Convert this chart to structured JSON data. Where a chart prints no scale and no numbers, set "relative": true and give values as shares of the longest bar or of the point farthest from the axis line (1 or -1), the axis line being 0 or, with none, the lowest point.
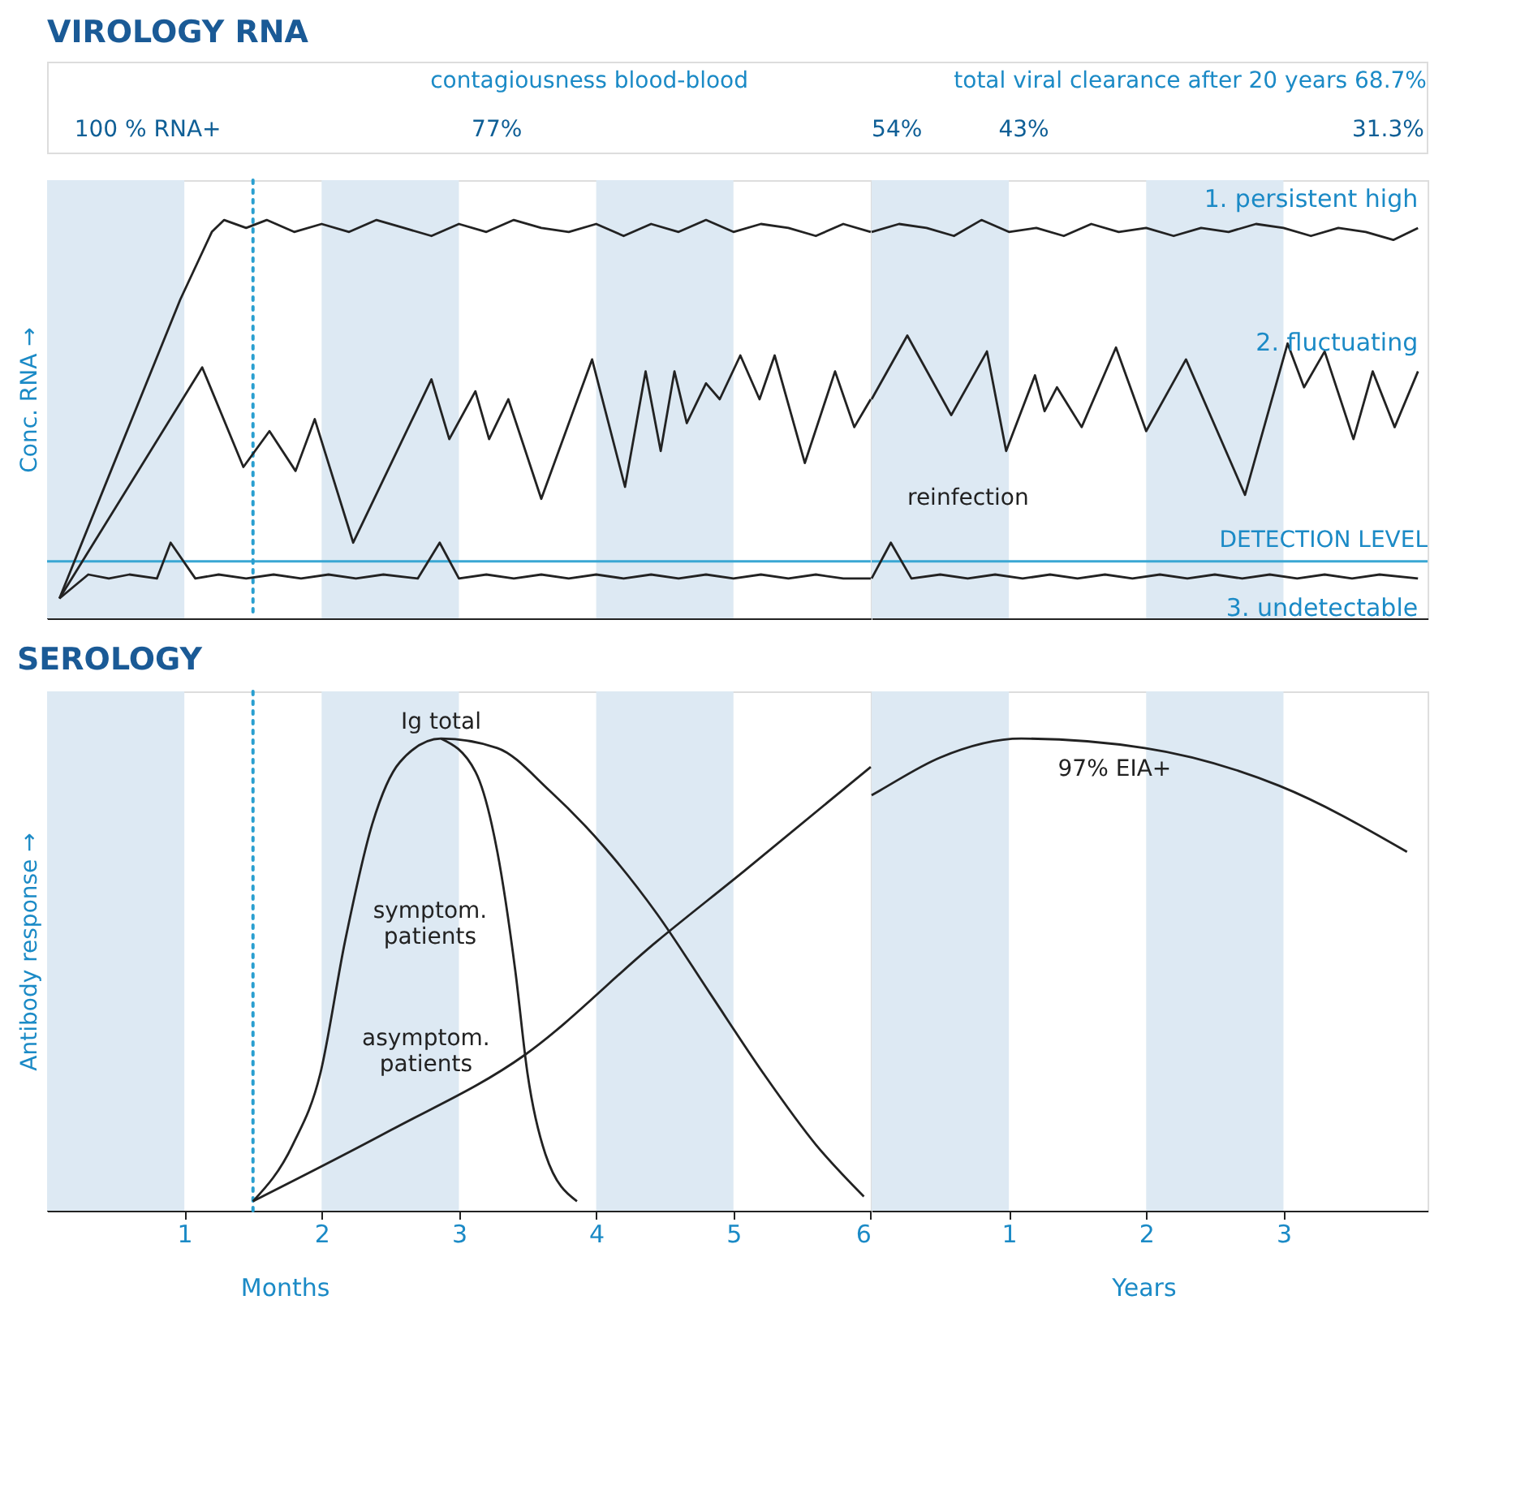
{
  "chart_data": [
    {
      "type": "other",
      "title": "VIROLOGY RNA",
      "annotations": [
        "contagiousness blood-blood",
        "total viral clearance after 20 years 68.7%",
        "100 % RNA+",
        "77%",
        "54%",
        "43%",
        "31.3%"
      ]
    },
    {
      "type": "line",
      "relative": true,
      "ylabel": "Conc. RNA →",
      "xlim": [
        0,
        6
      ],
      "tick_labels": false,
      "series": [
        {
          "color": "#222222",
          "x": [
            0.09,
            0.5,
            0.97,
            1.2,
            1.29,
            1.45,
            1.6,
            1.8,
            2.0,
            2.2,
            2.4,
            2.6,
            2.8,
            3.0,
            3.2,
            3.4,
            3.6,
            3.8,
            4.0,
            4.2,
            4.4,
            4.6,
            4.8,
            5.0,
            5.2,
            5.4,
            5.6,
            5.8,
            6.0
          ],
          "values": [
            0.05,
            0.4,
            0.8,
            0.97,
            1.0,
            0.98,
            1.0,
            0.97,
            0.99,
            0.97,
            1.0,
            0.98,
            0.96,
            0.99,
            0.97,
            1.0,
            0.98,
            0.97,
            0.99,
            0.96,
            0.99,
            0.97,
            1.0,
            0.97,
            0.99,
            0.98,
            0.96,
            0.99,
            0.97
          ]
        },
        {
          "color": "#222222",
          "x": [
            0.09,
            1.13,
            1.43,
            1.62,
            1.81,
            1.95,
            2.23,
            2.8,
            2.93,
            3.12,
            3.22,
            3.36,
            3.6,
            3.97,
            4.21,
            4.36,
            4.47,
            4.57,
            4.66,
            4.8,
            4.9,
            5.05,
            5.19,
            5.3,
            5.52,
            5.74,
            5.88,
            6.0
          ],
          "values": [
            0.05,
            0.63,
            0.38,
            0.47,
            0.37,
            0.5,
            0.19,
            0.6,
            0.45,
            0.57,
            0.45,
            0.55,
            0.3,
            0.65,
            0.33,
            0.62,
            0.42,
            0.62,
            0.49,
            0.59,
            0.55,
            0.66,
            0.55,
            0.66,
            0.39,
            0.62,
            0.48,
            0.55
          ]
        },
        {
          "color": "#222222",
          "x": [
            0.09,
            0.3,
            0.45,
            0.6,
            0.8,
            0.9,
            1.08,
            1.25,
            1.45,
            1.65,
            1.85,
            2.05,
            2.25,
            2.45,
            2.7,
            2.86,
            3.0,
            3.2,
            3.4,
            3.6,
            3.8,
            4.0,
            4.2,
            4.4,
            4.6,
            4.8,
            5.0,
            5.2,
            5.4,
            5.6,
            5.8,
            6.0
          ],
          "values": [
            0.05,
            0.11,
            0.1,
            0.11,
            0.1,
            0.19,
            0.1,
            0.11,
            0.1,
            0.11,
            0.1,
            0.11,
            0.1,
            0.11,
            0.1,
            0.19,
            0.1,
            0.11,
            0.1,
            0.11,
            0.1,
            0.11,
            0.1,
            0.11,
            0.1,
            0.11,
            0.1,
            0.11,
            0.1,
            0.11,
            0.1,
            0.1
          ]
        }
      ],
      "ref_lines": [
        {
          "axis": "y",
          "value": 0.143,
          "color": "#3aa7d3",
          "line_style": "solid"
        },
        {
          "axis": "x",
          "value": 1.5,
          "color": "#2a9fd0",
          "line_style": "dotted"
        }
      ],
      "bands": [
        {
          "axis": "x",
          "from": 0,
          "to": 1,
          "color": "#dde9f3"
        },
        {
          "axis": "x",
          "from": 2,
          "to": 3,
          "color": "#dde9f3"
        },
        {
          "axis": "x",
          "from": 4,
          "to": 5,
          "color": "#dde9f3"
        }
      ]
    },
    {
      "type": "line",
      "relative": true,
      "xlim": [
        0,
        4.05
      ],
      "tick_labels": false,
      "series": [
        {
          "name": "1. persistent high",
          "color": "#222222",
          "x": [
            0,
            0.2,
            0.4,
            0.6,
            0.8,
            1.0,
            1.2,
            1.4,
            1.6,
            1.8,
            2.0,
            2.2,
            2.4,
            2.6,
            2.8,
            3.0,
            3.2,
            3.4,
            3.6,
            3.8,
            3.98
          ],
          "values": [
            0.97,
            0.99,
            0.98,
            0.96,
            1.0,
            0.97,
            0.98,
            0.96,
            0.99,
            0.97,
            0.98,
            0.96,
            0.98,
            0.97,
            0.99,
            0.98,
            0.96,
            0.98,
            0.97,
            0.95,
            0.98
          ]
        },
        {
          "name": "2. fluctuating",
          "color": "#222222",
          "x": [
            0,
            0.26,
            0.58,
            0.84,
            0.98,
            1.19,
            1.26,
            1.35,
            1.53,
            1.78,
            2.0,
            2.29,
            2.72,
            3.03,
            3.15,
            3.3,
            3.51,
            3.65,
            3.81,
            3.98
          ],
          "values": [
            0.55,
            0.71,
            0.51,
            0.67,
            0.42,
            0.61,
            0.52,
            0.58,
            0.48,
            0.68,
            0.47,
            0.65,
            0.31,
            0.69,
            0.58,
            0.67,
            0.45,
            0.62,
            0.48,
            0.62
          ]
        },
        {
          "name": "3. undetectable",
          "color": "#222222",
          "x": [
            0,
            0.14,
            0.29,
            0.5,
            0.7,
            0.9,
            1.1,
            1.3,
            1.5,
            1.7,
            1.9,
            2.1,
            2.3,
            2.5,
            2.7,
            2.9,
            3.1,
            3.3,
            3.5,
            3.7,
            3.98
          ],
          "values": [
            0.1,
            0.19,
            0.1,
            0.11,
            0.1,
            0.11,
            0.1,
            0.11,
            0.1,
            0.11,
            0.1,
            0.11,
            0.1,
            0.11,
            0.1,
            0.11,
            0.1,
            0.11,
            0.1,
            0.11,
            0.1
          ]
        }
      ],
      "ref_lines": [
        {
          "axis": "y",
          "value": 0.143,
          "label": "DETECTION LEVEL",
          "color": "#3aa7d3",
          "line_style": "solid"
        }
      ],
      "bands": [
        {
          "axis": "x",
          "from": 0,
          "to": 1,
          "color": "#dde9f3"
        },
        {
          "axis": "x",
          "from": 2,
          "to": 3,
          "color": "#dde9f3"
        }
      ],
      "annotations": [
        "reinfection"
      ]
    },
    {
      "type": "line",
      "relative": true,
      "title": "SEROLOGY",
      "ylabel": "Antibody response →",
      "xlabel": "Months",
      "xlim": [
        0,
        6
      ],
      "tick_labels": "x",
      "xticks": [
        1,
        2,
        3,
        4,
        5,
        6
      ],
      "series": [
        {
          "color": "#222222",
          "x": [
            1.5,
            1.79,
            1.99,
            2.17,
            2.37,
            2.57,
            2.87,
            3.28,
            3.66,
            4.06,
            4.44,
            4.83,
            5.22,
            5.6,
            5.95
          ],
          "values": [
            0.02,
            0.14,
            0.29,
            0.57,
            0.82,
            0.95,
            1.0,
            0.98,
            0.89,
            0.77,
            0.63,
            0.46,
            0.29,
            0.14,
            0.03
          ]
        },
        {
          "color": "#222222",
          "x": [
            2.87,
            3.12,
            3.28,
            3.41,
            3.5,
            3.63,
            3.86
          ],
          "values": [
            1.0,
            0.93,
            0.76,
            0.51,
            0.29,
            0.12,
            0.02
          ]
        },
        {
          "color": "#222222",
          "x": [
            1.5,
            2.5,
            3.48,
            4.44,
            5.08,
            6.0
          ],
          "values": [
            0.02,
            0.17,
            0.33,
            0.57,
            0.72,
            0.94
          ]
        }
      ],
      "ref_lines": [
        {
          "axis": "x",
          "value": 1.5,
          "color": "#2a9fd0",
          "line_style": "dotted"
        }
      ],
      "bands": [
        {
          "axis": "x",
          "from": 0,
          "to": 1,
          "color": "#dde9f3"
        },
        {
          "axis": "x",
          "from": 2,
          "to": 3,
          "color": "#dde9f3"
        },
        {
          "axis": "x",
          "from": 4,
          "to": 5,
          "color": "#dde9f3"
        }
      ],
      "annotations": [
        "Ig total",
        "symptom. patients",
        "asymptom. patients"
      ]
    },
    {
      "type": "line",
      "relative": true,
      "xlabel": "Years",
      "xlim": [
        0,
        4.05
      ],
      "tick_labels": "x",
      "xticks": [
        1,
        2,
        3
      ],
      "series": [
        {
          "color": "#222222",
          "x": [
            0,
            0.06,
            0.5,
            1.09,
            1.99,
            2.97,
            3.9
          ],
          "values": [
            0.88,
            0.89,
            0.96,
            1.0,
            0.98,
            0.9,
            0.76
          ]
        }
      ],
      "bands": [
        {
          "axis": "x",
          "from": 0,
          "to": 1,
          "color": "#dde9f3"
        },
        {
          "axis": "x",
          "from": 2,
          "to": 3,
          "color": "#dde9f3"
        }
      ],
      "annotations": [
        "97% EIA+"
      ]
    }
  ]
}
